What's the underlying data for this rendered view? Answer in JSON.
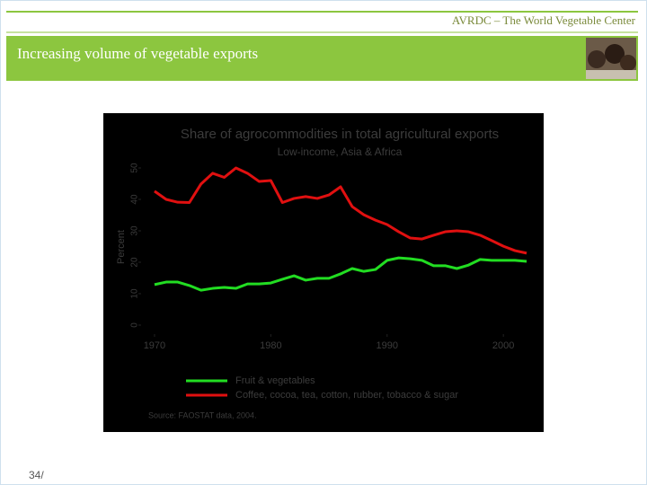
{
  "header": {
    "organization": "AVRDC – The World Vegetable Center"
  },
  "slide": {
    "title": "Increasing volume of vegetable exports",
    "page_number": "34/"
  },
  "chart_data": {
    "type": "line",
    "title": "Share of agrocommodities in total agricultural exports",
    "subtitle": "Low-income, Asia & Africa",
    "y_label": "Percent",
    "source": "Source: FAOSTAT data, 2004.",
    "x": [
      1970,
      1971,
      1972,
      1973,
      1974,
      1975,
      1976,
      1977,
      1978,
      1979,
      1980,
      1981,
      1982,
      1983,
      1984,
      1985,
      1986,
      1987,
      1988,
      1989,
      1990,
      1991,
      1992,
      1993,
      1994,
      1995,
      1996,
      1997,
      1998,
      1999,
      2000,
      2001,
      2002
    ],
    "series": [
      {
        "name": "Fruit & vegetables",
        "color": "#22dd22",
        "values": [
          12.9,
          13.7,
          13.7,
          12.6,
          11.1,
          11.7,
          12.0,
          11.7,
          13.1,
          13.1,
          13.4,
          14.6,
          15.7,
          14.3,
          14.9,
          14.9,
          16.3,
          18.0,
          17.1,
          17.7,
          20.6,
          21.4,
          21.1,
          20.6,
          18.9,
          18.9,
          18.0,
          19.1,
          20.9,
          20.6,
          20.6,
          20.6,
          20.3
        ]
      },
      {
        "name": "Coffee, cocoa, tea, cotton, rubber, tobacco & sugar",
        "color": "#e01010",
        "values": [
          42.6,
          40.0,
          39.1,
          39.0,
          44.9,
          48.3,
          47.0,
          50.0,
          48.3,
          45.7,
          46.0,
          39.0,
          40.3,
          40.9,
          40.3,
          41.4,
          44.0,
          37.7,
          35.1,
          33.4,
          32.0,
          29.7,
          27.7,
          27.4,
          28.6,
          29.7,
          30.0,
          29.7,
          28.6,
          26.9,
          25.1,
          23.7,
          22.9
        ]
      }
    ],
    "xlim": [
      1969,
      2003
    ],
    "xticks": [
      1970,
      1980,
      1990,
      2000
    ],
    "ylim": [
      0,
      55
    ],
    "yticks": [
      0,
      10,
      20,
      30,
      40,
      50
    ]
  }
}
